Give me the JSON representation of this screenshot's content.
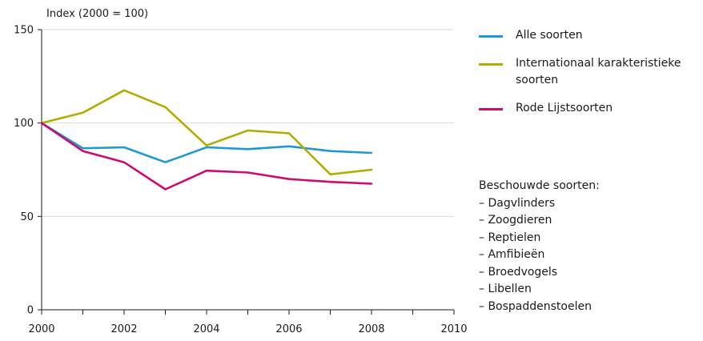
{
  "chart_data": {
    "type": "line",
    "ylabel": "Index (2000 = 100)",
    "xlim": [
      2000,
      2010
    ],
    "ylim": [
      0,
      150
    ],
    "xticks": [
      "2000",
      "2002",
      "2004",
      "2006",
      "2008",
      "2010"
    ],
    "yticks": [
      "0",
      "50",
      "100",
      "150"
    ],
    "grid": "horizontal",
    "legend_position": "right",
    "x": [
      2000,
      2001,
      2002,
      2003,
      2004,
      2005,
      2006,
      2007,
      2008
    ],
    "series": [
      {
        "name": "Alle soorten",
        "color": "#1d9ad6",
        "values": [
          100,
          86.5,
          87,
          79,
          87,
          86,
          87.5,
          85,
          84
        ]
      },
      {
        "name": "Internationaal karakteristieke soorten",
        "color": "#b3ac00",
        "values": [
          100,
          105.5,
          117.5,
          108.5,
          88,
          96,
          94.5,
          72.5,
          75
        ]
      },
      {
        "name": "Rode Lijstsoorten",
        "color": "#cc0c6e",
        "values": [
          100,
          85,
          79,
          64.5,
          74.5,
          73.5,
          70,
          68.5,
          67.5
        ]
      }
    ]
  },
  "legend": {
    "items": [
      {
        "label": "Alle soorten",
        "color": "#1d9ad6"
      },
      {
        "label": "Internationaal karakteristieke soorten",
        "color": "#b3ac00"
      },
      {
        "label": "Rode Lijstsoorten",
        "color": "#cc0c6e"
      }
    ]
  },
  "note": {
    "title": "Beschouwde soorten:",
    "items": [
      "Dagvlinders",
      "Zoogdieren",
      "Reptielen",
      "Amfibieën",
      "Broedvogels",
      "Libellen",
      "Bospaddenstoelen"
    ]
  }
}
